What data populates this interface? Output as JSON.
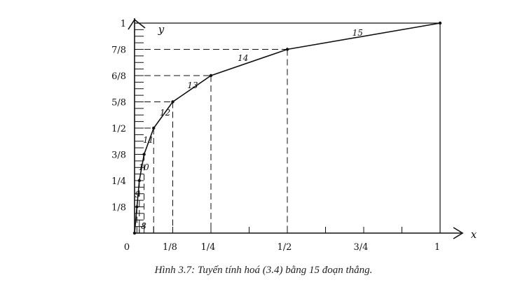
{
  "chart_data": {
    "type": "line",
    "xlabel": "x",
    "ylabel": "y",
    "xlim": [
      0,
      1
    ],
    "ylim": [
      0,
      1
    ],
    "grid": false,
    "x_ticks": [
      {
        "value": 0.125,
        "label": "1/8"
      },
      {
        "value": 0.25,
        "label": "1/4"
      },
      {
        "value": 0.5,
        "label": "1/2"
      },
      {
        "value": 0.75,
        "label": "3/4"
      },
      {
        "value": 1,
        "label": "1"
      }
    ],
    "origin_label": "0",
    "y_ticks": [
      {
        "value": 0.125,
        "label": "1/8"
      },
      {
        "value": 0.25,
        "label": "1/4"
      },
      {
        "value": 0.375,
        "label": "3/8"
      },
      {
        "value": 0.5,
        "label": "1/2"
      },
      {
        "value": 0.625,
        "label": "5/8"
      },
      {
        "value": 0.75,
        "label": "6/8"
      },
      {
        "value": 0.875,
        "label": "7/8"
      },
      {
        "value": 1,
        "label": "1"
      }
    ],
    "points": [
      {
        "x": 0,
        "y": 0
      },
      {
        "x": 0.0078125,
        "y": 0.125
      },
      {
        "x": 0.015625,
        "y": 0.25
      },
      {
        "x": 0.03125,
        "y": 0.375
      },
      {
        "x": 0.0625,
        "y": 0.5
      },
      {
        "x": 0.125,
        "y": 0.625
      },
      {
        "x": 0.25,
        "y": 0.75
      },
      {
        "x": 0.5,
        "y": 0.875
      },
      {
        "x": 1,
        "y": 1
      }
    ],
    "segment_labels": [
      {
        "label": "8",
        "x": 0.03,
        "y": 0.02
      },
      {
        "label": "9",
        "x": 0.01,
        "y": 0.17
      },
      {
        "label": "10",
        "x": 0.03,
        "y": 0.3
      },
      {
        "label": "11",
        "x": 0.045,
        "y": 0.43
      },
      {
        "label": "12",
        "x": 0.1,
        "y": 0.56
      },
      {
        "label": "13",
        "x": 0.19,
        "y": 0.69
      },
      {
        "label": "14",
        "x": 0.355,
        "y": 0.82
      },
      {
        "label": "15",
        "x": 0.73,
        "y": 0.94
      }
    ]
  },
  "caption": "Hình 3.7: Tuyến tính hoá (3.4) bằng 15 đoạn thẳng."
}
